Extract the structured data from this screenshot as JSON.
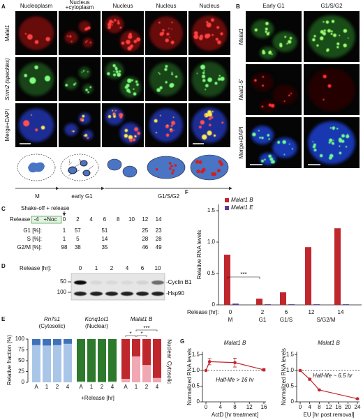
{
  "panel_labels": [
    "A",
    "B",
    "C",
    "D",
    "E",
    "F",
    "G"
  ],
  "panel_a": {
    "column_headers": [
      [
        "Nucleoplasm"
      ],
      [
        "Nucleus",
        "+cytoplasm"
      ],
      [
        "Nucleus"
      ],
      [
        "Nucleus"
      ],
      [
        "Nucleus"
      ]
    ],
    "row_labels": [
      "Malat1",
      "Srrm2 (speckles)",
      "Merge+DAPI"
    ],
    "stages": [
      "M",
      "early G1",
      "G1/S/G2"
    ]
  },
  "panel_b": {
    "column_headers": [
      "Early G1",
      "G1/S/G2"
    ],
    "row_labels": [
      "Malat1",
      "Neat1-5'",
      "Merge+DAPI"
    ]
  },
  "panel_c": {
    "annotation": "Shake-off + release",
    "treatment": "+Noc",
    "timeline_label": "Release [hr]:",
    "timeline": [
      -4,
      0,
      2,
      4,
      6,
      8,
      10,
      12,
      14
    ],
    "table": {
      "rows": [
        {
          "label": "G1 [%]:",
          "values": [
            1,
            57,
            51,
            25,
            23
          ]
        },
        {
          "label": "S [%]:",
          "values": [
            1,
            5,
            14,
            28,
            28
          ]
        },
        {
          "label": "G2/M [%]:",
          "values": [
            98,
            38,
            35,
            46,
            49
          ]
        }
      ]
    }
  },
  "panel_d": {
    "label": "Release [hr]:",
    "lanes": [
      0,
      1,
      2,
      4,
      6,
      10
    ],
    "markers": [
      50,
      100
    ],
    "bands": [
      "-Cyclin B1",
      "-Hsp90"
    ]
  },
  "chart_data": [
    {
      "type": "stacked_bar",
      "ylabel": "Relative fraction (%)",
      "xlabel": "+Release [hr]",
      "ylim": [
        0,
        100
      ],
      "yticks": [
        0,
        25,
        50,
        75,
        100
      ],
      "groups": [
        {
          "title": "Rn7s1",
          "subtitle": "(Cytosolic)",
          "title_color": "#3a6fb5",
          "categories": [
            "A",
            1,
            2,
            4
          ],
          "series": [
            {
              "color": "#a9c6e8",
              "values": [
                86,
                85,
                86,
                89
              ]
            },
            {
              "color": "#3f72b8",
              "values": [
                14,
                15,
                14,
                11
              ]
            }
          ]
        },
        {
          "title": "Kcnq1ot1",
          "subtitle": "(Nuclear)",
          "title_color": "#2d8a2d",
          "categories": [
            "A",
            1,
            2,
            4
          ],
          "series": [
            {
              "color": "#a8d8a0",
              "values": [
                2,
                1,
                1,
                2
              ]
            },
            {
              "color": "#2d7a2d",
              "values": [
                98,
                99,
                99,
                98
              ]
            }
          ]
        },
        {
          "title": "Malat1 B",
          "title_color": "#c0272d",
          "categories": [
            "A",
            1,
            2,
            4
          ],
          "series": [
            {
              "name": "Cytosolic",
              "color": "#f0a8b4",
              "values": [
                8,
                60,
                40,
                10
              ]
            },
            {
              "name": "Nuclear",
              "color": "#c0272d",
              "values": [
                92,
                40,
                60,
                90
              ]
            }
          ],
          "significance": [
            "*",
            "*",
            "***"
          ]
        }
      ]
    },
    {
      "type": "bar",
      "ylabel": "Relative RNA levels",
      "xlabel": "Release [hr]:",
      "categories": [
        0,
        2,
        6,
        12,
        14
      ],
      "phase_labels": [
        "M",
        "G1",
        "G1/S",
        "S/G2/M"
      ],
      "series": [
        {
          "name": "Malat1 B",
          "color": "#c0272d",
          "values": [
            0.8,
            0.1,
            0.2,
            0.92,
            1.22
          ]
        },
        {
          "name": "Malat1 E",
          "color": "#5b3c99",
          "values": [
            0.02,
            0.01,
            0.01,
            0.01,
            0.01
          ]
        }
      ],
      "ylim": [
        0,
        1.6
      ],
      "yticks": [
        0,
        0.5,
        {
          "value": 1,
          "label": "1.0"
        },
        1.5
      ],
      "significance": "***",
      "legend": "top-left"
    },
    {
      "type": "line",
      "title": "Malat1 B",
      "x": [
        0,
        1,
        8,
        16
      ],
      "values": [
        1,
        1.28,
        1.25,
        1.02
      ],
      "errors": [
        0,
        0.1,
        0.14,
        0.04
      ],
      "color": "#c0272d",
      "xlim": [
        0,
        16
      ],
      "xticks": [
        0,
        4,
        8,
        12,
        16
      ],
      "ylim": [
        0,
        1.6
      ],
      "yticks": [
        0,
        0.5,
        {
          "value": 1,
          "label": "1.0"
        },
        1.5
      ],
      "xlabel": "ActD [hr treatment]",
      "ylabel": "Normalized RNA levels",
      "annotation": "Half-life > 16 hr",
      "reference_line": 1
    },
    {
      "type": "line",
      "title": "Malat1 B",
      "x": [
        0,
        4,
        8,
        24
      ],
      "values": [
        1,
        0.72,
        0.38,
        0.1
      ],
      "errors": [
        0.02,
        0.03,
        0.02,
        0.02
      ],
      "color": "#c0272d",
      "xlim": [
        0,
        24
      ],
      "xticks": [
        0,
        4,
        8,
        12,
        16,
        20,
        24
      ],
      "ylim": [
        0,
        1.6
      ],
      "yticks": [
        0,
        0.5,
        {
          "value": 1,
          "label": "1.0"
        },
        1.5
      ],
      "xlabel": "EU [hr post removal]",
      "ylabel": "Normalized RNA levels",
      "annotation": "Half-life ~ 6.5 hr",
      "reference_line": 1
    }
  ]
}
